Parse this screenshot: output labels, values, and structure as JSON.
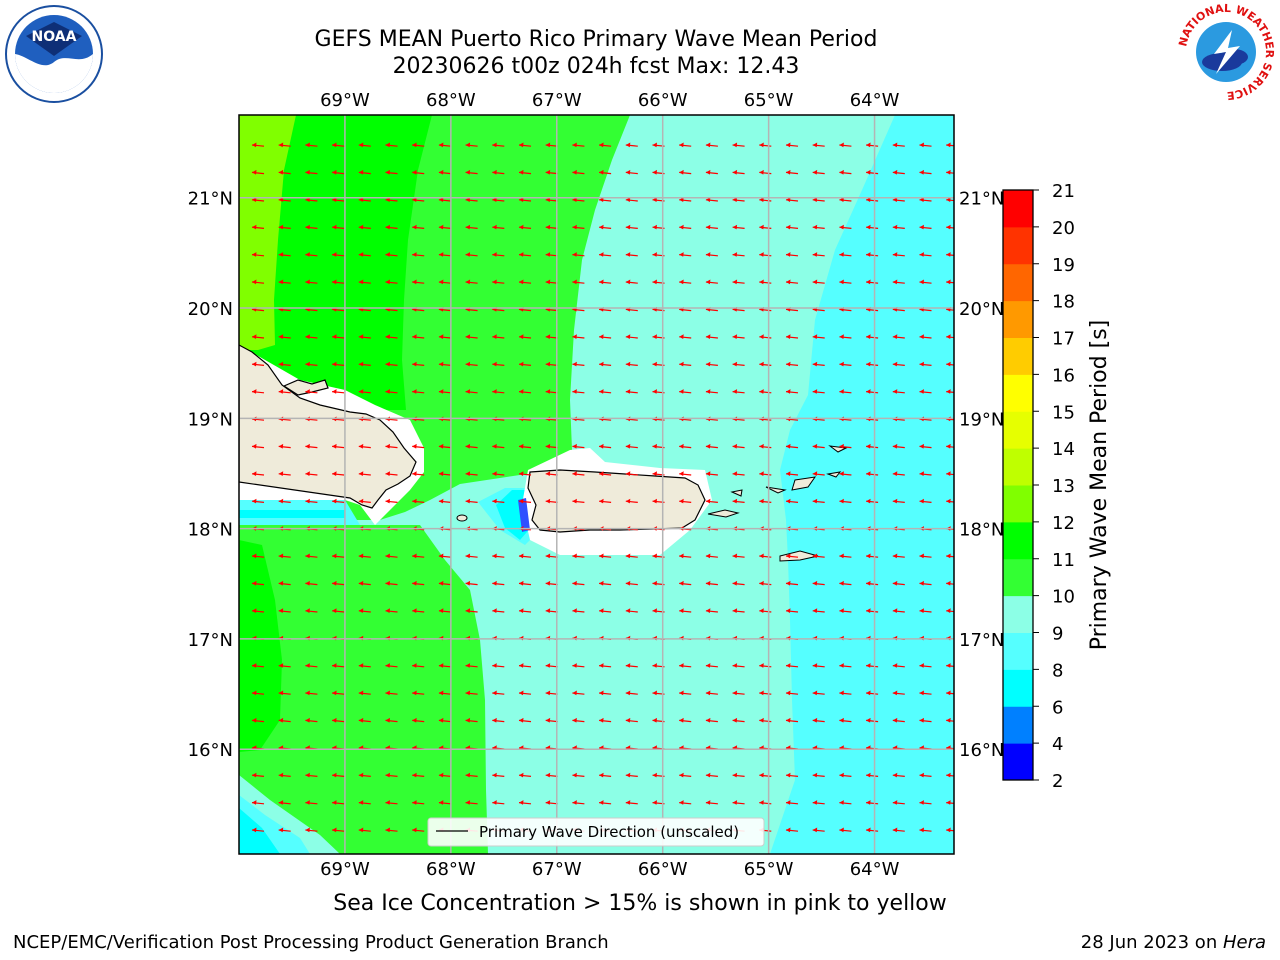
{
  "header": {
    "title_line1": "GEFS MEAN Puerto Rico Primary Wave Mean Period",
    "title_line2": "20230626 t00z 024h fcst   Max: 12.43"
  },
  "footer": {
    "left_text": "NCEP/EMC/Verification Post Processing Product Generation Branch",
    "date_text": "28 Jun 2023 on ",
    "host_text": "Hera"
  },
  "notes": {
    "sea_ice": "Sea Ice Concentration > 15% is shown in pink to yellow"
  },
  "logos": {
    "noaa_text": "NOAA",
    "nws_text": "NATIONAL WEATHER SERVICE"
  },
  "chart_data": {
    "type": "heatmap",
    "map_extent": {
      "lon": [
        -70.0,
        -63.25
      ],
      "lat": [
        15.05,
        21.75
      ]
    },
    "x_ticks": [
      {
        "value": -69,
        "label": "69°W"
      },
      {
        "value": -68,
        "label": "68°W"
      },
      {
        "value": -67,
        "label": "67°W"
      },
      {
        "value": -66,
        "label": "66°W"
      },
      {
        "value": -65,
        "label": "65°W"
      },
      {
        "value": -64,
        "label": "64°W"
      }
    ],
    "y_ticks": [
      {
        "value": 16,
        "label": "16°N"
      },
      {
        "value": 17,
        "label": "17°N"
      },
      {
        "value": 18,
        "label": "18°N"
      },
      {
        "value": 19,
        "label": "19°N"
      },
      {
        "value": 20,
        "label": "20°N"
      },
      {
        "value": 21,
        "label": "21°N"
      }
    ],
    "grid": true,
    "max_value": 12.43,
    "colorbar": {
      "label": "Primary Wave Mean Period [s]",
      "levels": [
        2,
        4,
        6,
        8,
        9,
        10,
        11,
        12,
        13,
        14,
        15,
        16,
        17,
        18,
        19,
        20,
        21
      ],
      "colors": [
        "#0000ff",
        "#0080ff",
        "#00ffff",
        "#55ffff",
        "#8cffe6",
        "#33ff33",
        "#00ff00",
        "#80ff00",
        "#bfff00",
        "#e6ff00",
        "#ffff00",
        "#ffcc00",
        "#ff9900",
        "#ff6600",
        "#ff3300",
        "#ff0000"
      ]
    },
    "legend": {
      "label": "Primary Wave Direction (unscaled)",
      "position": "bottom-center"
    },
    "vector_direction": "westward",
    "colors": {
      "vector": "#ff0000",
      "land": "#efebda",
      "grid": "#b4b4b4"
    }
  }
}
